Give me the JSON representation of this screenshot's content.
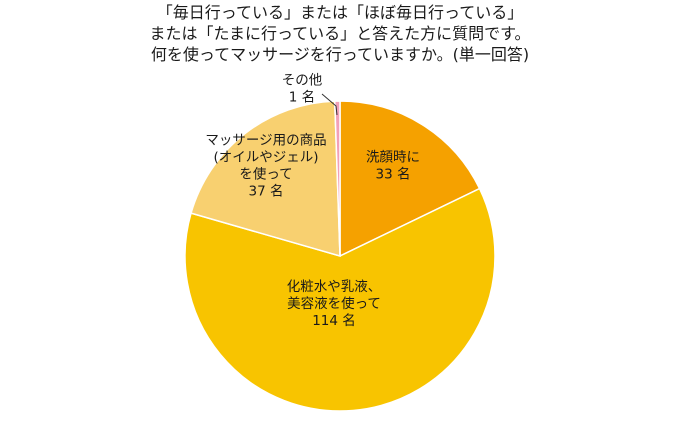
{
  "title_lines": [
    "「毎日行っている」または「ほぼ毎日行っている」",
    "または「たまに行っている」と答えた方に質問です。",
    "何を使ってマッサージを行っていますか。(単一回答)"
  ],
  "chart_data": {
    "type": "pie",
    "unit": "名",
    "slices": [
      {
        "label_lines": [
          "洗顔時に"
        ],
        "value": 33,
        "value_text": "33 名",
        "color": "#F5A100"
      },
      {
        "label_lines": [
          "化粧水や乳液、",
          "美容液を使って"
        ],
        "value": 114,
        "value_text": "114 名",
        "color": "#F8C400"
      },
      {
        "label_lines": [
          "マッサージ用の商品",
          "(オイルやジェル)",
          "を使って"
        ],
        "value": 37,
        "value_text": "37 名",
        "color": "#F8D070"
      },
      {
        "label_lines": [
          "その他"
        ],
        "value": 1,
        "value_text": "1 名",
        "color": "#F2A0B8"
      }
    ]
  }
}
